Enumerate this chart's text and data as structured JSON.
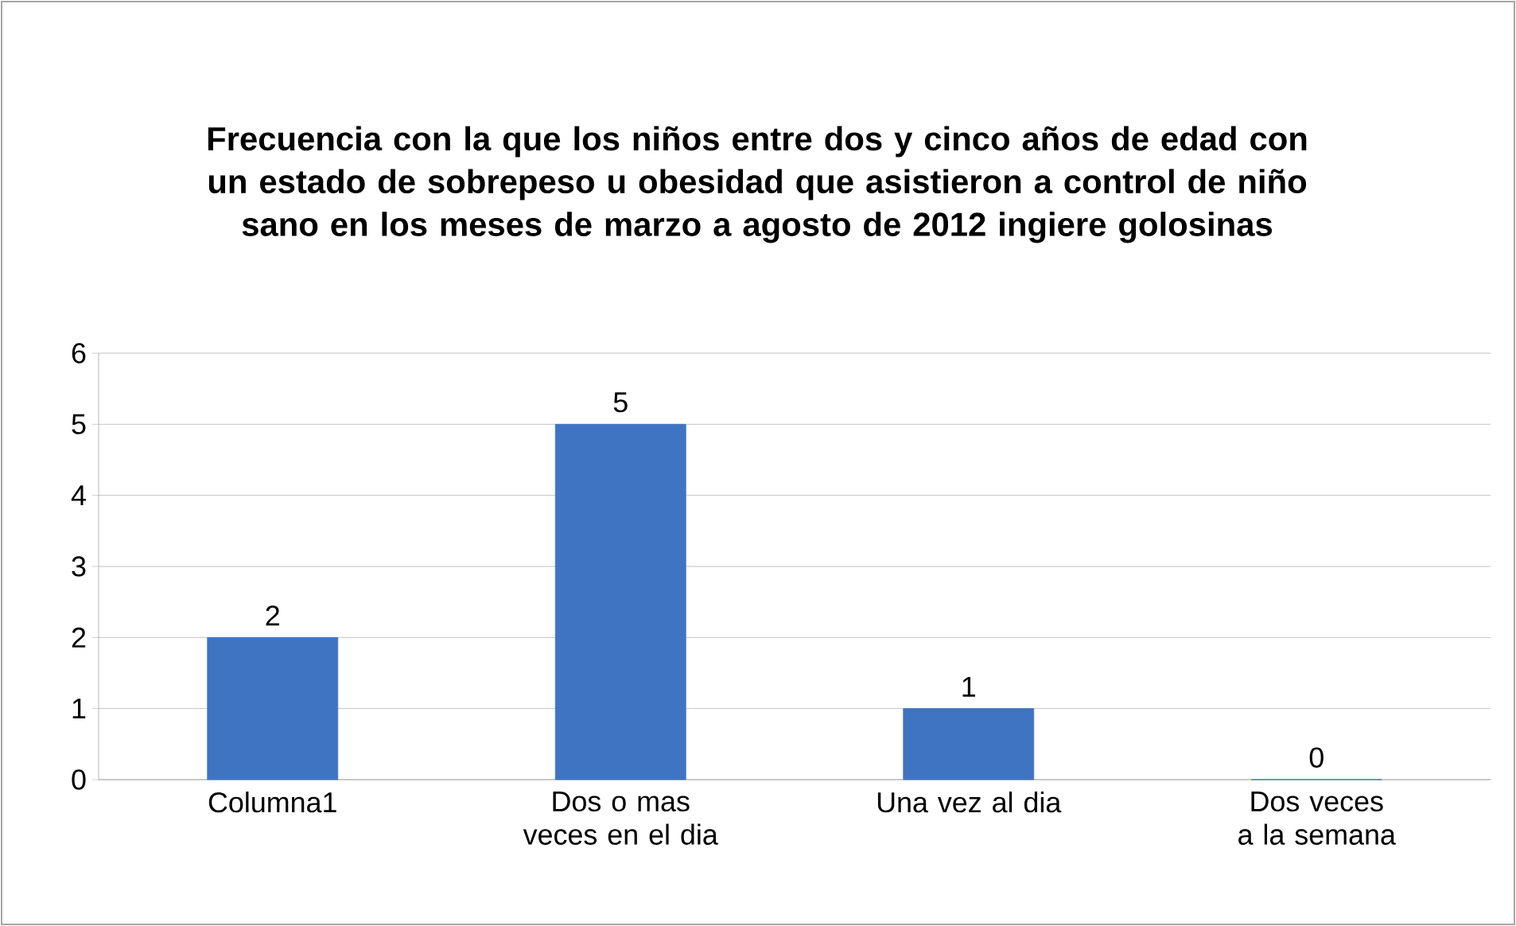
{
  "chart_data": {
    "type": "bar",
    "title": "Frecuencia con la que los niños entre dos y cinco años de edad con un estado de sobrepeso u obesidad que asistieron a control de niño sano en los meses de marzo a agosto de 2012 ingiere golosinas",
    "categories": [
      "Columna1",
      "Dos o mas veces en el dia",
      "Una vez al dia",
      "Dos veces a la semana"
    ],
    "values": [
      2,
      5,
      1,
      0
    ],
    "color": "#3f74c2",
    "ylim": [
      0,
      6
    ],
    "yticks": [
      0,
      1,
      2,
      3,
      4,
      5,
      6
    ],
    "grid": "y",
    "data_labels": true
  }
}
